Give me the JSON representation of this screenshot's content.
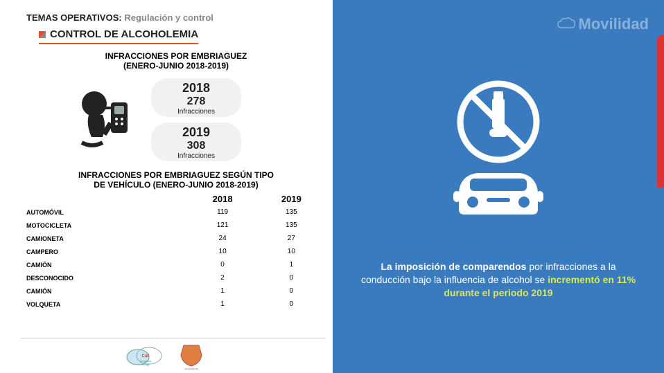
{
  "header": {
    "breadcrumb_main": "TEMAS OPERATIVOS:",
    "breadcrumb_sub": "Regulación y control",
    "section_title": "CONTROL DE ALCOHOLEMIA",
    "underline_color": "#e94e1b"
  },
  "stats": {
    "subtitle_line1": "INFRACCIONES POR EMBRIAGUEZ",
    "subtitle_line2": "(ENERO-JUNIO 2018-2019)",
    "boxes": [
      {
        "year": "2018",
        "value": "278",
        "label": "Infracciones"
      },
      {
        "year": "2019",
        "value": "308",
        "label": "Infracciones"
      }
    ],
    "box_bg": "#f1f1f1"
  },
  "table": {
    "title_line1": "INFRACCIONES POR EMBRIAGUEZ SEGÚN TIPO",
    "title_line2": "DE VEHÍCULO (ENERO-JUNIO 2018-2019)",
    "columns": [
      "",
      "2018",
      "2019"
    ],
    "rows": [
      [
        "AUTOMÓVIL",
        "119",
        "135"
      ],
      [
        "MOTOCICLETA",
        "121",
        "135"
      ],
      [
        "CAMIONETA",
        "24",
        "27"
      ],
      [
        "CAMPERO",
        "10",
        "10"
      ],
      [
        "CAMIÓN",
        "0",
        "1"
      ],
      [
        "DESCONOCIDO",
        "2",
        "0"
      ],
      [
        "CAMIÓN",
        "1",
        "0"
      ],
      [
        "VOLQUETA",
        "1",
        "0"
      ]
    ],
    "header_fontsize": 13,
    "cell_fontsize": 10
  },
  "right_panel": {
    "bg_color": "#3a7bbf",
    "brand": "Movilidad",
    "caption_parts": [
      {
        "text": "La imposición de comparendos ",
        "style": "hl1"
      },
      {
        "text": "por infracciones a la conducción bajo la influencia de alcohol se ",
        "style": ""
      },
      {
        "text": "incrementó en 11% durante el periodo 2019",
        "style": "hl2"
      }
    ],
    "icon_color": "#ffffff"
  },
  "footer": {
    "logo1_label": "Cali progresa contigo",
    "logo2_label": "ALCALDÍA DE SANTIAGO DE CALI"
  },
  "colors": {
    "text": "#222222",
    "muted": "#888888",
    "accent_red": "#e94e1b",
    "highlight_yellow": "#d9eb52"
  }
}
